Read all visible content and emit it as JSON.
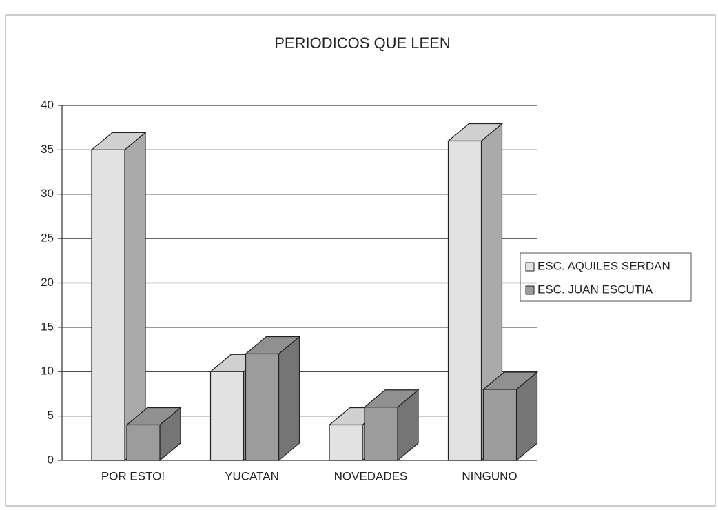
{
  "chart_data": {
    "type": "bar3d",
    "title": "PERIODICOS QUE LEEN",
    "categories": [
      "POR ESTO!",
      "YUCATAN",
      "NOVEDADES",
      "NINGUNO"
    ],
    "series": [
      {
        "name": "ESC. AQUILES SERDAN",
        "color": "#e2e2e2",
        "values": [
          35,
          10,
          4,
          36
        ]
      },
      {
        "name": "ESC. JUAN ESCUTIA",
        "color": "#9c9c9c",
        "values": [
          4,
          12,
          6,
          8
        ]
      }
    ],
    "ylim": [
      0,
      40
    ],
    "yticks": [
      0,
      5,
      10,
      15,
      20,
      25,
      30,
      35,
      40
    ],
    "grid": true,
    "legend": "right"
  }
}
